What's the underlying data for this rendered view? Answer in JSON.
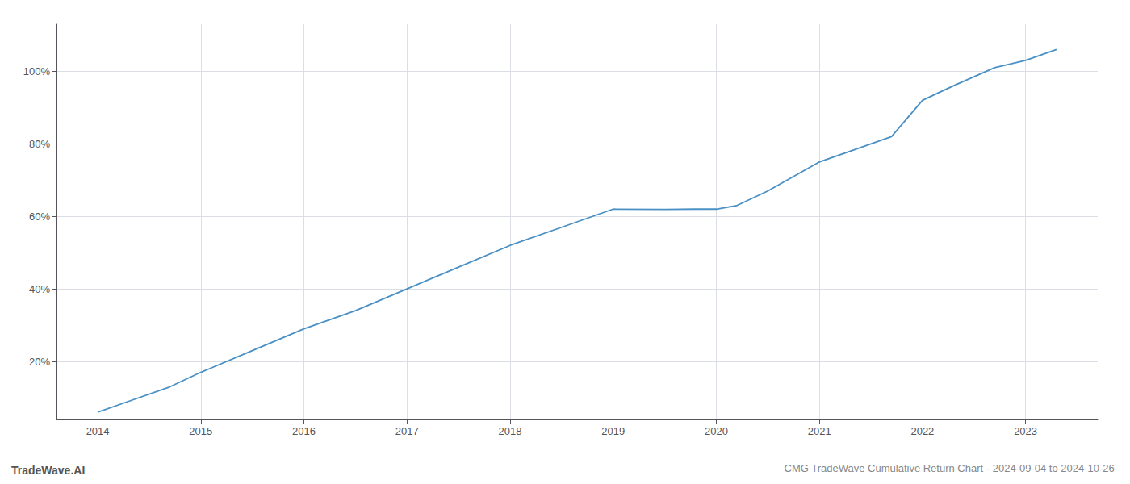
{
  "chart_data": {
    "type": "line",
    "title": "CMG TradeWave Cumulative Return Chart - 2024-09-04 to 2024-10-26",
    "annotations": [
      "TradeWave.AI"
    ],
    "x": [
      2014.0,
      2014.3,
      2014.7,
      2015.0,
      2015.5,
      2016.0,
      2016.5,
      2017.0,
      2017.5,
      2018.0,
      2018.5,
      2019.0,
      2019.5,
      2019.8,
      2020.0,
      2020.2,
      2020.5,
      2021.0,
      2021.3,
      2021.7,
      2022.0,
      2022.3,
      2022.7,
      2023.0,
      2023.3
    ],
    "values": [
      0.06,
      0.09,
      0.13,
      0.17,
      0.23,
      0.29,
      0.34,
      0.4,
      0.46,
      0.52,
      0.57,
      0.62,
      0.619,
      0.62,
      0.62,
      0.63,
      0.67,
      0.75,
      0.78,
      0.82,
      0.92,
      0.96,
      1.01,
      1.03,
      1.06
    ],
    "color": "#4a90c4",
    "xlim": [
      2013.6,
      2023.7
    ],
    "ylim": [
      0.04,
      1.13
    ],
    "xticks": [
      2014,
      2015,
      2016,
      2017,
      2018,
      2019,
      2020,
      2021,
      2022,
      2023
    ],
    "yticks": [
      {
        "value": 0.2,
        "label": "20%"
      },
      {
        "value": 0.4,
        "label": "40%"
      },
      {
        "value": 0.6,
        "label": "60%"
      },
      {
        "value": 0.8,
        "label": "80%"
      },
      {
        "value": 1.0,
        "label": "100%"
      }
    ],
    "grid": true
  }
}
